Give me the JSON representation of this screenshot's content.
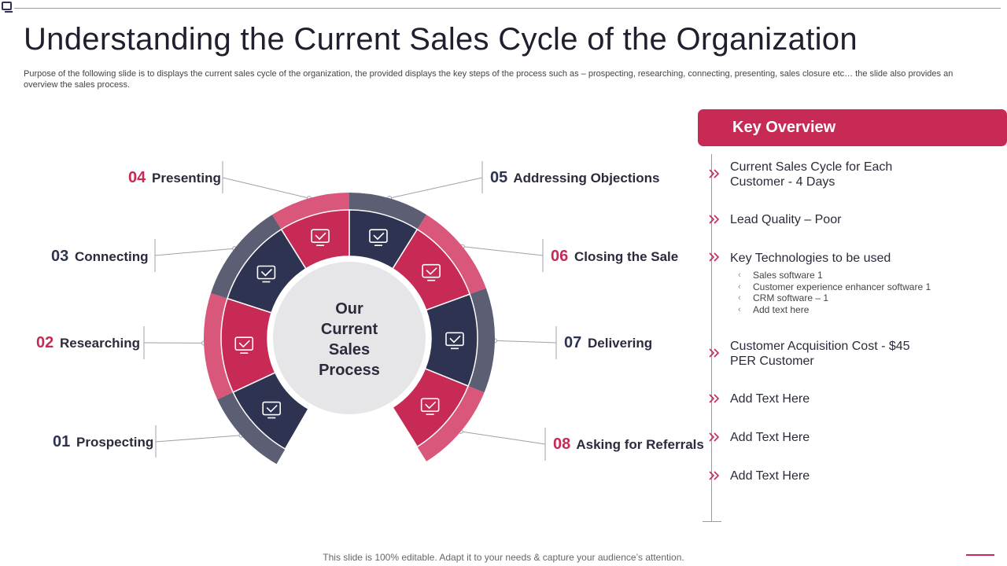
{
  "title": "Understanding the Current Sales Cycle of the Organization",
  "description": "Purpose of the following slide is to displays the current sales cycle of the organization, the provided displays the key steps of the process such as – prospecting, researching, connecting, presenting, sales closure etc… the slide also provides an overview the sales process.",
  "diagram": {
    "center": [
      "Our",
      "Current",
      "Sales",
      "Process"
    ],
    "steps": [
      {
        "num": "01",
        "label": "Prospecting",
        "icon": "handshake-icon"
      },
      {
        "num": "02",
        "label": "Researching",
        "icon": "agreement-icon"
      },
      {
        "num": "03",
        "label": "Connecting",
        "icon": "approved-box-icon"
      },
      {
        "num": "04",
        "label": "Presenting",
        "icon": "report-icon"
      },
      {
        "num": "05",
        "label": "Addressing Objections",
        "icon": "discussion-icon"
      },
      {
        "num": "06",
        "label": "Closing the Sale",
        "icon": "analytics-icon"
      },
      {
        "num": "07",
        "label": "Delivering",
        "icon": "network-icon"
      },
      {
        "num": "08",
        "label": "Asking for Referrals",
        "icon": "presentation-icon"
      }
    ]
  },
  "overview": {
    "header": "Key Overview",
    "items": [
      {
        "lines": [
          "Current Sales Cycle for Each",
          "Customer - 4 Days"
        ]
      },
      {
        "lines": [
          "Lead Quality – Poor"
        ]
      },
      {
        "lines": [
          "Key Technologies to be used"
        ]
      },
      {
        "lines": [
          "Customer Acquisition Cost - $45",
          "PER Customer"
        ]
      },
      {
        "lines": [
          "Add Text Here"
        ]
      },
      {
        "lines": [
          "Add Text Here"
        ]
      },
      {
        "lines": [
          "Add Text Here"
        ]
      }
    ],
    "technologies": [
      "Sales software 1",
      "Customer experience enhancer software 1",
      "CRM software – 1",
      "Add text here"
    ]
  },
  "footer": "This slide is 100% editable. Adapt it to your needs & capture your audience’s attention.",
  "colors": {
    "pink": "#c72a55",
    "pink_light": "#d9577a",
    "navy": "#2f3352",
    "slate": "#5c5e73",
    "center_fill": "#e6e6e8"
  }
}
